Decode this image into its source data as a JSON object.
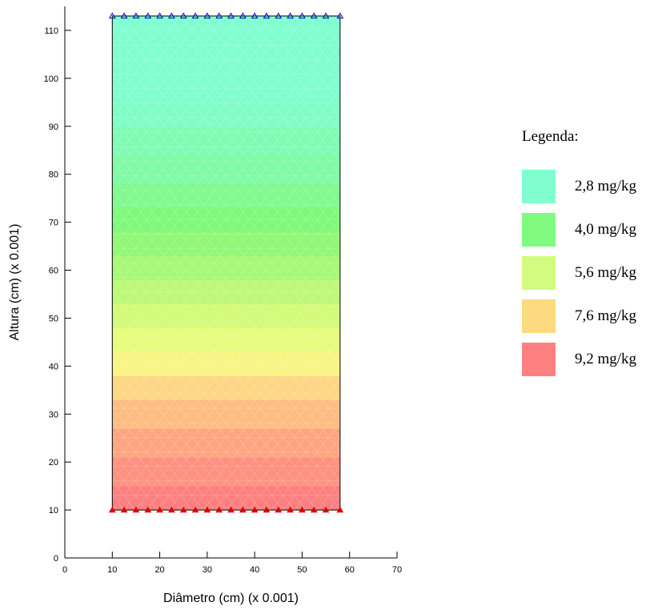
{
  "chart_data": {
    "type": "heatmap",
    "title": "",
    "xlabel": "Diâmetro (cm) (x 0.001)",
    "ylabel": "Altura (cm) (x 0.001)",
    "xlim": [
      0,
      70
    ],
    "ylim": [
      0,
      115
    ],
    "x_ticks": [
      "0",
      "10",
      "20",
      "30",
      "40",
      "50",
      "60",
      "70"
    ],
    "y_ticks": [
      "0",
      "10",
      "20",
      "30",
      "40",
      "50",
      "60",
      "70",
      "80",
      "90",
      "100",
      "110"
    ],
    "domain": {
      "x": [
        10,
        58
      ],
      "y": [
        10,
        113
      ]
    },
    "bands": [
      {
        "y0": 10,
        "y1": 15,
        "color": "#FE7F7F"
      },
      {
        "y0": 15,
        "y1": 21,
        "color": "#FE9180"
      },
      {
        "y0": 21,
        "y1": 27,
        "color": "#FEA580"
      },
      {
        "y0": 27,
        "y1": 33,
        "color": "#FDBD82"
      },
      {
        "y0": 33,
        "y1": 38,
        "color": "#FDD683"
      },
      {
        "y0": 38,
        "y1": 43,
        "color": "#F8F585"
      },
      {
        "y0": 43,
        "y1": 48,
        "color": "#E7FB7D"
      },
      {
        "y0": 48,
        "y1": 53,
        "color": "#D3FA78"
      },
      {
        "y0": 53,
        "y1": 58,
        "color": "#BDF878"
      },
      {
        "y0": 58,
        "y1": 63,
        "color": "#A7F877"
      },
      {
        "y0": 63,
        "y1": 68,
        "color": "#91F877"
      },
      {
        "y0": 68,
        "y1": 73,
        "color": "#80F97A"
      },
      {
        "y0": 73,
        "y1": 78,
        "color": "#80F98E"
      },
      {
        "y0": 78,
        "y1": 84,
        "color": "#80FAA4"
      },
      {
        "y0": 84,
        "y1": 90,
        "color": "#80FBB5"
      },
      {
        "y0": 90,
        "y1": 96,
        "color": "#80FDC6"
      },
      {
        "y0": 96,
        "y1": 113,
        "color": "#80FED0"
      }
    ],
    "boundary_markers": {
      "top": {
        "y": 113,
        "shape": "triangle-open",
        "color": "#0000CC",
        "x": [
          10,
          12.5,
          15,
          17.5,
          20,
          22.5,
          25,
          27.5,
          30,
          32.5,
          35,
          37.5,
          40,
          42.5,
          45,
          47.5,
          50,
          52.5,
          55,
          58
        ]
      },
      "bottom": {
        "y": 10,
        "shape": "triangle-filled",
        "color": "#E00000",
        "x": [
          10,
          12.5,
          15,
          17.5,
          20,
          22.5,
          25,
          27.5,
          30,
          32.5,
          35,
          37.5,
          40,
          42.5,
          45,
          47.5,
          50,
          52.5,
          55,
          58
        ]
      }
    },
    "legend": {
      "title": "Legenda:",
      "position": "right",
      "items": [
        {
          "label": "2,8 mg/kg",
          "color": "#80FED0"
        },
        {
          "label": "4,0 mg/kg",
          "color": "#80FB80"
        },
        {
          "label": "5,6 mg/kg",
          "color": "#D3FB80"
        },
        {
          "label": "7,6 mg/kg",
          "color": "#FDDA80"
        },
        {
          "label": "9,2 mg/kg",
          "color": "#FE8080"
        }
      ]
    }
  }
}
